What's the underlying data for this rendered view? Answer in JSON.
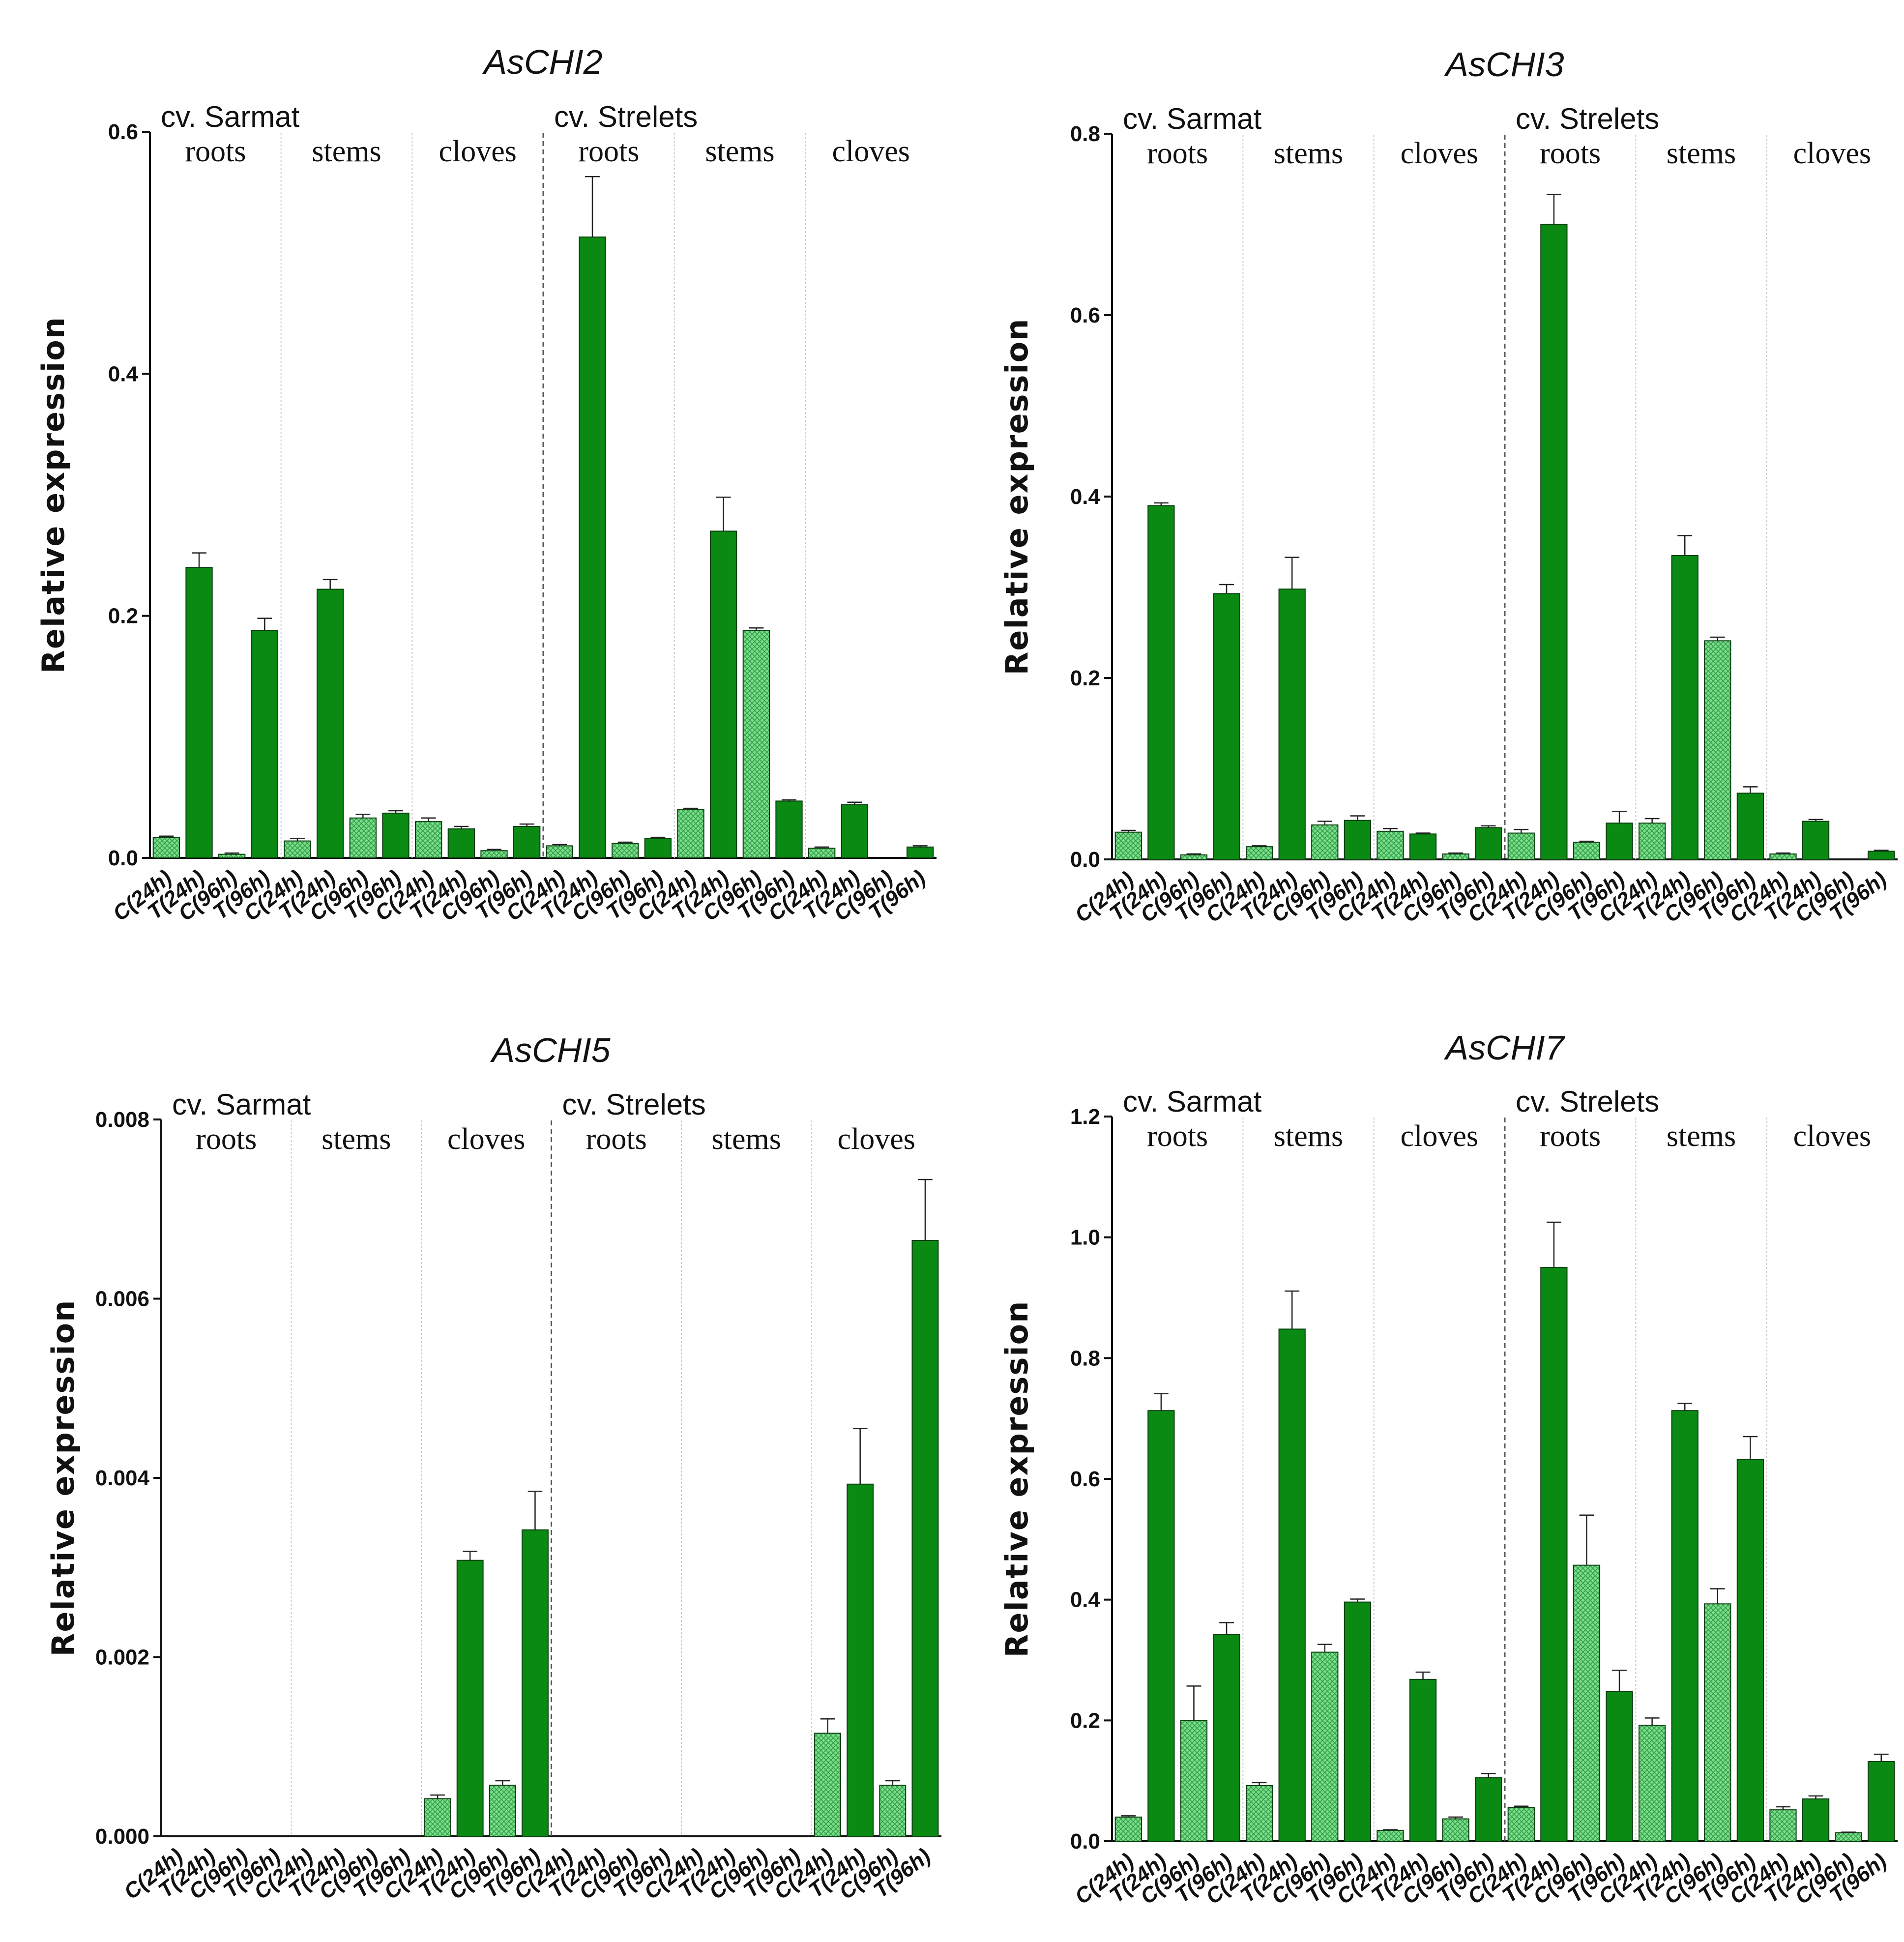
{
  "figure": {
    "cultivar_labels": [
      "cv. Sarmat",
      "cv. Strelets"
    ],
    "tissue_labels": [
      "roots",
      "stems",
      "cloves"
    ],
    "x_categories": [
      "C(24h)",
      "T(24h)",
      "C(96h)",
      "T(96h)"
    ],
    "colors": {
      "control": "#7cdc8c",
      "treated": "#0a8a12",
      "axis": "#111111"
    }
  },
  "chart_data": [
    {
      "type": "bar",
      "title": "AsCHI2",
      "ylabel": "Relative expression",
      "ylim": [
        0,
        0.6
      ],
      "yticks": [
        0.0,
        0.2,
        0.4,
        0.6
      ],
      "ytick_labels": [
        "0.0",
        "0.2",
        "0.4",
        "0.6"
      ],
      "series": [
        {
          "name": "Sarmat roots",
          "values": [
            0.017,
            0.24,
            0.003,
            0.188
          ],
          "errors": [
            0.001,
            0.012,
            0.001,
            0.01
          ]
        },
        {
          "name": "Sarmat stems",
          "values": [
            0.014,
            0.222,
            0.033,
            0.037
          ],
          "errors": [
            0.002,
            0.008,
            0.003,
            0.002
          ]
        },
        {
          "name": "Sarmat cloves",
          "values": [
            0.03,
            0.024,
            0.006,
            0.026
          ],
          "errors": [
            0.003,
            0.002,
            0.001,
            0.002
          ]
        },
        {
          "name": "Strelets roots",
          "values": [
            0.01,
            0.513,
            0.012,
            0.016
          ],
          "errors": [
            0.001,
            0.05,
            0.001,
            0.001
          ]
        },
        {
          "name": "Strelets stems",
          "values": [
            0.04,
            0.27,
            0.188,
            0.047
          ],
          "errors": [
            0.001,
            0.028,
            0.002,
            0.001
          ]
        },
        {
          "name": "Strelets cloves",
          "values": [
            0.008,
            0.044,
            0.0,
            0.009
          ],
          "errors": [
            0.001,
            0.002,
            0.0,
            0.001
          ]
        }
      ]
    },
    {
      "type": "bar",
      "title": "AsCHI3",
      "ylabel": "Relative expression",
      "ylim": [
        0,
        0.8
      ],
      "yticks": [
        0.0,
        0.2,
        0.4,
        0.6,
        0.8
      ],
      "ytick_labels": [
        "0.0",
        "0.2",
        "0.4",
        "0.6",
        "0.8"
      ],
      "series": [
        {
          "name": "Sarmat roots",
          "values": [
            0.03,
            0.39,
            0.005,
            0.293
          ],
          "errors": [
            0.002,
            0.003,
            0.001,
            0.01
          ]
        },
        {
          "name": "Sarmat stems",
          "values": [
            0.014,
            0.298,
            0.038,
            0.043
          ],
          "errors": [
            0.001,
            0.035,
            0.004,
            0.005
          ]
        },
        {
          "name": "Sarmat cloves",
          "values": [
            0.031,
            0.028,
            0.006,
            0.035
          ],
          "errors": [
            0.003,
            0.001,
            0.001,
            0.002
          ]
        },
        {
          "name": "Strelets roots",
          "values": [
            0.029,
            0.7,
            0.019,
            0.04
          ],
          "errors": [
            0.004,
            0.033,
            0.001,
            0.013
          ]
        },
        {
          "name": "Strelets stems",
          "values": [
            0.04,
            0.335,
            0.241,
            0.073
          ],
          "errors": [
            0.005,
            0.022,
            0.004,
            0.007
          ]
        },
        {
          "name": "Strelets cloves",
          "values": [
            0.006,
            0.042,
            0.0,
            0.009
          ],
          "errors": [
            0.001,
            0.002,
            0.0,
            0.001
          ]
        }
      ]
    },
    {
      "type": "bar",
      "title": "AsCHI5",
      "ylabel": "Relative expression",
      "ylim": [
        0,
        0.008
      ],
      "yticks": [
        0.0,
        0.002,
        0.004,
        0.006,
        0.008
      ],
      "ytick_labels": [
        "0.000",
        "0.002",
        "0.004",
        "0.006",
        "0.008"
      ],
      "series": [
        {
          "name": "Sarmat roots",
          "values": [
            0,
            0,
            0,
            0
          ],
          "errors": [
            0,
            0,
            0,
            0
          ]
        },
        {
          "name": "Sarmat stems",
          "values": [
            0,
            0,
            0,
            0
          ],
          "errors": [
            0,
            0,
            0,
            0
          ]
        },
        {
          "name": "Sarmat cloves",
          "values": [
            0.00042,
            0.00308,
            0.00057,
            0.00342
          ],
          "errors": [
            4e-05,
            0.0001,
            5e-05,
            0.00043
          ]
        },
        {
          "name": "Strelets roots",
          "values": [
            0,
            0,
            0,
            0
          ],
          "errors": [
            0,
            0,
            0,
            0
          ]
        },
        {
          "name": "Strelets stems",
          "values": [
            0,
            0,
            0,
            0
          ],
          "errors": [
            0,
            0,
            0,
            0
          ]
        },
        {
          "name": "Strelets cloves",
          "values": [
            0.00115,
            0.00393,
            0.00057,
            0.00665
          ],
          "errors": [
            0.00016,
            0.00062,
            5e-05,
            0.00068
          ]
        }
      ]
    },
    {
      "type": "bar",
      "title": "AsCHI7",
      "ylabel": "Relative expression",
      "ylim": [
        0,
        1.2
      ],
      "yticks": [
        0.0,
        0.2,
        0.4,
        0.6,
        0.8,
        1.0,
        1.2
      ],
      "ytick_labels": [
        "0.0",
        "0.2",
        "0.4",
        "0.6",
        "0.8",
        "1.0",
        "1.2"
      ],
      "series": [
        {
          "name": "Sarmat roots",
          "values": [
            0.04,
            0.713,
            0.2,
            0.342
          ],
          "errors": [
            0.002,
            0.028,
            0.057,
            0.02
          ]
        },
        {
          "name": "Sarmat stems",
          "values": [
            0.092,
            0.848,
            0.313,
            0.396
          ],
          "errors": [
            0.005,
            0.063,
            0.013,
            0.005
          ]
        },
        {
          "name": "Sarmat cloves",
          "values": [
            0.018,
            0.268,
            0.037,
            0.105
          ],
          "errors": [
            0.001,
            0.012,
            0.003,
            0.007
          ]
        },
        {
          "name": "Strelets roots",
          "values": [
            0.056,
            0.95,
            0.457,
            0.248
          ],
          "errors": [
            0.002,
            0.075,
            0.083,
            0.035
          ]
        },
        {
          "name": "Strelets stems",
          "values": [
            0.192,
            0.713,
            0.393,
            0.632
          ],
          "errors": [
            0.012,
            0.012,
            0.025,
            0.038
          ]
        },
        {
          "name": "Strelets cloves",
          "values": [
            0.052,
            0.07,
            0.014,
            0.132
          ],
          "errors": [
            0.005,
            0.005,
            0.001,
            0.012
          ]
        }
      ]
    }
  ]
}
